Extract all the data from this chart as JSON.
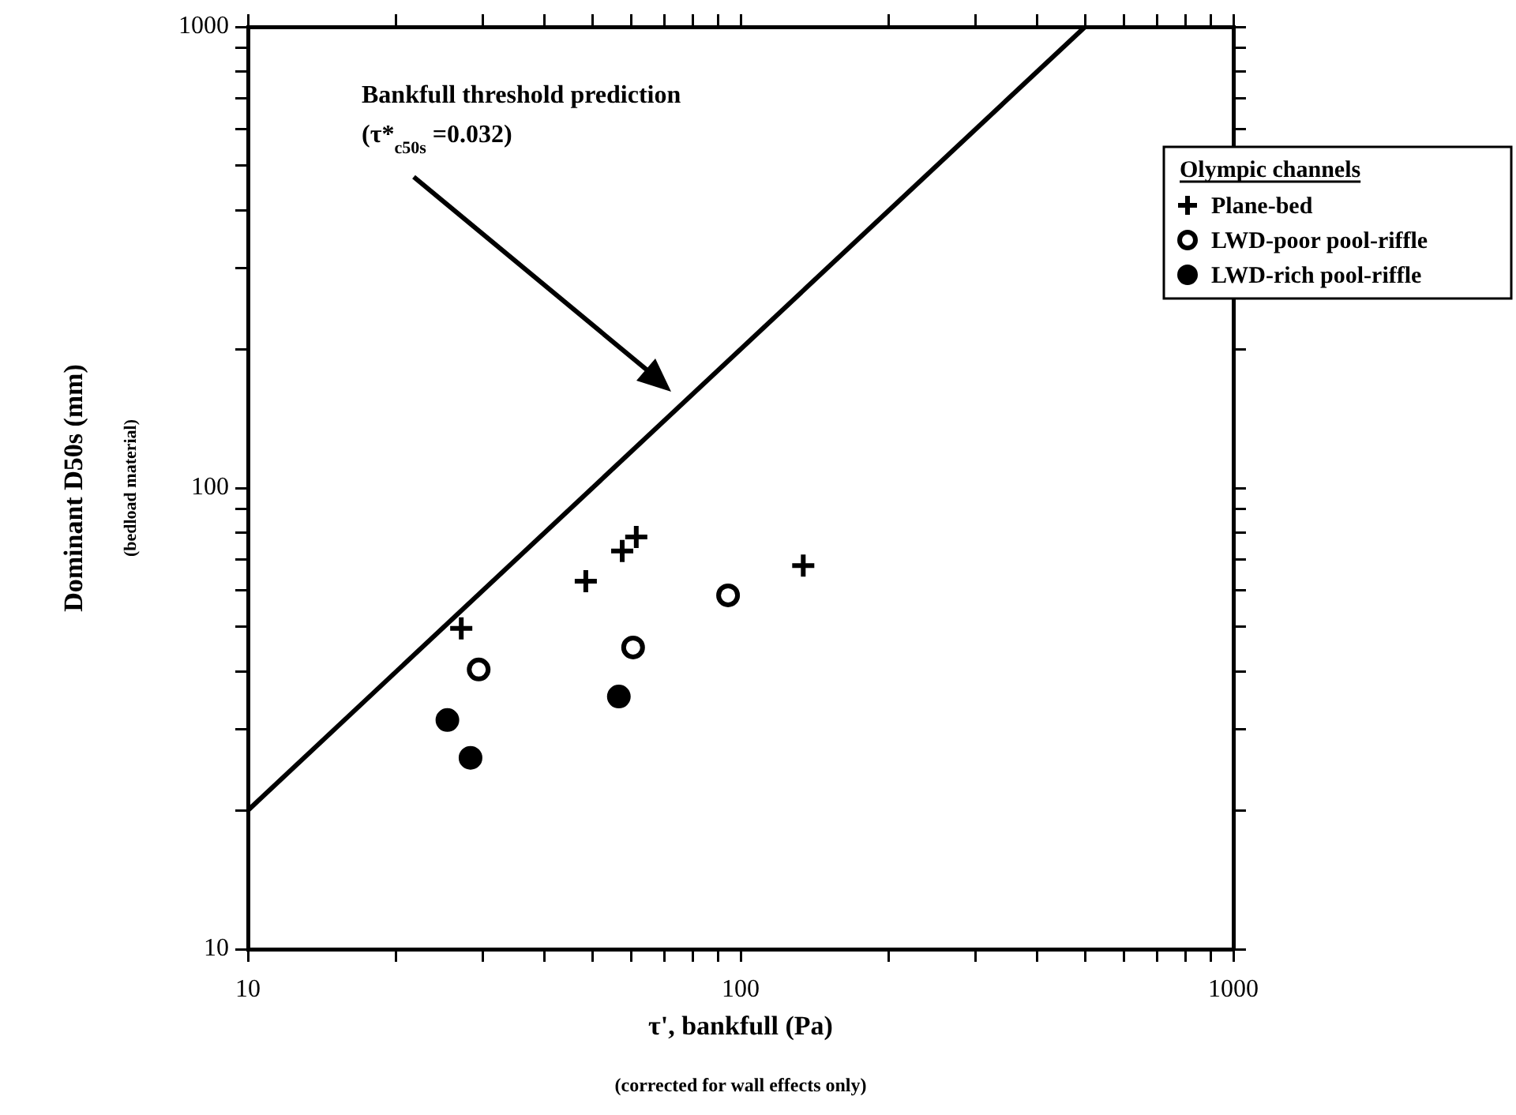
{
  "chart_data": {
    "type": "scatter",
    "xlabel": "τ', bankfull (Pa)",
    "ylabel": "Dominant D50s (mm)",
    "legend_title": "Olympic channels",
    "log": "xy",
    "grid": false,
    "legend": "top right",
    "xlim": [
      10,
      1000
    ],
    "ylim": [
      10,
      1000
    ],
    "xticks": [
      10,
      {
        "value": 20,
        "label": null
      },
      {
        "value": 30,
        "label": null
      },
      {
        "value": 40,
        "label": null
      },
      {
        "value": 50,
        "label": null
      },
      {
        "value": 60,
        "label": null
      },
      {
        "value": 70,
        "label": null
      },
      {
        "value": 80,
        "label": null
      },
      {
        "value": 90,
        "label": null
      },
      100,
      {
        "value": 200,
        "label": null
      },
      {
        "value": 300,
        "label": null
      },
      {
        "value": 400,
        "label": null
      },
      {
        "value": 500,
        "label": null
      },
      {
        "value": 600,
        "label": null
      },
      {
        "value": 700,
        "label": null
      },
      {
        "value": 800,
        "label": null
      },
      {
        "value": 900,
        "label": null
      },
      1000
    ],
    "yticks": [
      10,
      {
        "value": 20,
        "label": null
      },
      {
        "value": 30,
        "label": null
      },
      {
        "value": 40,
        "label": null
      },
      {
        "value": 50,
        "label": null
      },
      {
        "value": 60,
        "label": null
      },
      {
        "value": 70,
        "label": null
      },
      {
        "value": 80,
        "label": null
      },
      {
        "value": 90,
        "label": null
      },
      100,
      {
        "value": 200,
        "label": null
      },
      {
        "value": 300,
        "label": null
      },
      {
        "value": 400,
        "label": null
      },
      {
        "value": 500,
        "label": null
      },
      {
        "value": 600,
        "label": null
      },
      {
        "value": 700,
        "label": null
      },
      {
        "value": 800,
        "label": null
      },
      {
        "value": 900,
        "label": null
      },
      1000
    ],
    "series": [
      {
        "name": "Plane-bed",
        "color": "#000000",
        "marker": "cross",
        "x": [
          27.1,
          48.5,
          57.5,
          61.4,
          134
        ],
        "values": [
          49.6,
          62.8,
          73.0,
          78.3,
          67.9
        ]
      },
      {
        "name": "LWD-poor pool-riffle",
        "color": "#000000",
        "marker": "circle",
        "x": [
          29.4,
          60.5,
          94.3
        ],
        "values": [
          40.4,
          45.1,
          58.5
        ]
      },
      {
        "name": "LWD-rich pool-riffle",
        "color": "#000000",
        "marker": "circle",
        "x": [
          25.4,
          28.3,
          56.6
        ],
        "values": [
          31.4,
          26.0,
          35.3
        ]
      },
      {
        "type": "line",
        "color": "#000000",
        "marker": "none",
        "line_style": "solid",
        "x": [
          10,
          500
        ],
        "values": [
          20,
          1000
        ]
      }
    ],
    "annotations": [
      "Bankfull threshold prediction\n(τ*$_{c50s}$ =0.032)",
      "(bedload material)",
      "(corrected for wall effects only)"
    ]
  }
}
